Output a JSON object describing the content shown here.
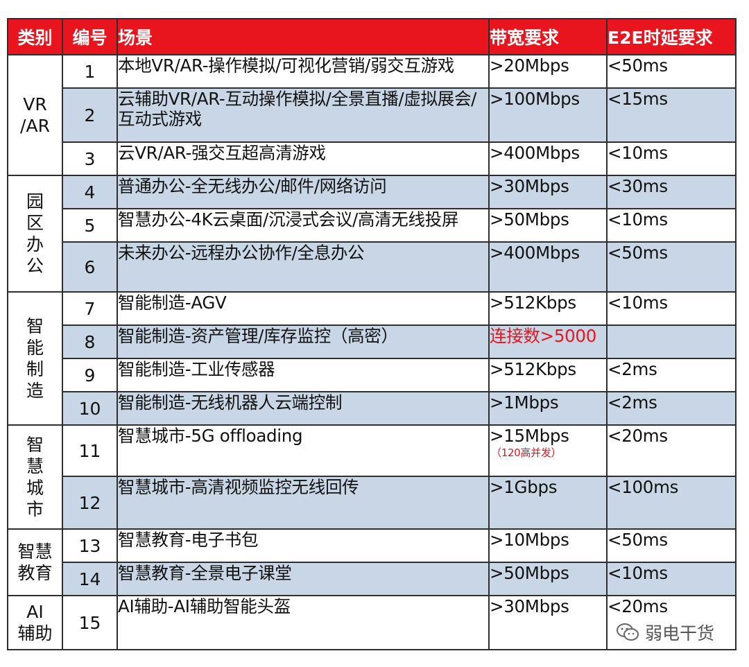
{
  "header": {
    "category": "类别",
    "number": "编号",
    "scene": "场景",
    "bandwidth": "带宽要求",
    "latency": "E2E时延要求"
  },
  "groups": [
    {
      "name": "VR\n/AR",
      "rows": [
        {
          "num": "1",
          "scene": "本地VR/AR-操作模拟/可视化营销/弱交互游戏",
          "bandwidth": ">20Mbps",
          "latency": "<50ms"
        },
        {
          "num": "2",
          "scene": "云辅助VR/AR-互动操作模拟/全景直播/虚拟展会/互动式游戏",
          "bandwidth": ">100Mbps",
          "latency": "<15ms"
        },
        {
          "num": "3",
          "scene": "云VR/AR-强交互超高清游戏",
          "bandwidth": ">400Mbps",
          "latency": "<10ms"
        }
      ]
    },
    {
      "name": "园\n区\n办\n公",
      "rows": [
        {
          "num": "4",
          "scene": "普通办公-全无线办公/邮件/网络访问",
          "bandwidth": ">30Mbps",
          "latency": "<30ms"
        },
        {
          "num": "5",
          "scene": "智慧办公-4K云桌面/沉浸式会议/高清无线投屏",
          "bandwidth": ">50Mbps",
          "latency": "<10ms"
        },
        {
          "num": "6",
          "scene": "未来办公-远程办公协作/全息办公",
          "bandwidth": ">400Mbps",
          "latency": "<50ms"
        }
      ]
    },
    {
      "name": "智\n能\n制\n造",
      "rows": [
        {
          "num": "7",
          "scene": "智能制造-AGV",
          "bandwidth": ">512Kbps",
          "latency": "<10ms"
        },
        {
          "num": "8",
          "scene": "智能制造-资产管理/库存监控（高密）",
          "bandwidth": "连接数>5000",
          "latency": ""
        },
        {
          "num": "9",
          "scene": "智能制造-工业传感器",
          "bandwidth": ">512Kbps",
          "latency": "<2ms"
        },
        {
          "num": "10",
          "scene": "智能制造-无线机器人云端控制",
          "bandwidth": ">1Mbps",
          "latency": "<2ms"
        }
      ]
    },
    {
      "name": "智\n慧\n城\n市",
      "rows": [
        {
          "num": "11",
          "scene": "智慧城市-5G offloading",
          "bandwidth": ">15Mbps",
          "bandwidth_note": "（120高并发）",
          "latency": "<20ms"
        },
        {
          "num": "12",
          "scene": "智慧城市-高清视频监控无线回传",
          "bandwidth": ">1Gbps",
          "latency": "<100ms"
        }
      ]
    },
    {
      "name": "智慧\n教育",
      "rows": [
        {
          "num": "13",
          "scene": "智慧教育-电子书包",
          "bandwidth": ">10Mbps",
          "latency": "<50ms"
        },
        {
          "num": "14",
          "scene": "智慧教育-全景电子课堂",
          "bandwidth": ">50Mbps",
          "latency": "<10ms"
        }
      ]
    },
    {
      "name": "AI\n辅助",
      "rows": [
        {
          "num": "15",
          "scene": "AI辅助-AI辅助智能头盔",
          "bandwidth": ">30Mbps",
          "latency": "<20ms"
        }
      ]
    }
  ],
  "watermark": {
    "text": "弱电干货",
    "icon": "wechat-icon"
  },
  "colors": {
    "header_bg": "#e8151f",
    "alt_row": "#c9d6e6",
    "highlight": "#e8151f"
  }
}
